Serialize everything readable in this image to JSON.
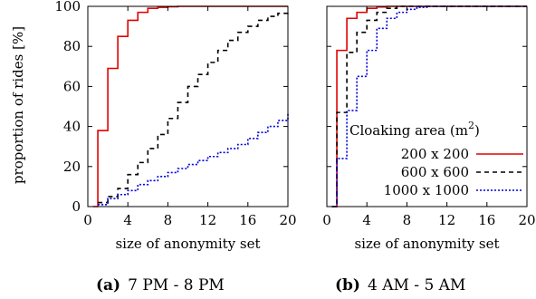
{
  "ylabel": "proportion of rides [%]",
  "legend_title_text": "Cloaking area (m",
  "legend_title_sup": "2",
  "legend_title_close": ")",
  "chart_data": [
    {
      "type": "line",
      "step": true,
      "caption_letter": "(a)",
      "caption_text": "7 PM - 8 PM",
      "xlabel": "size of anonymity set",
      "ylabel": "proportion of rides [%]",
      "xlim": [
        0,
        20
      ],
      "ylim": [
        0,
        100
      ],
      "xticks": [
        0,
        4,
        8,
        12,
        16,
        20
      ],
      "yticks": [
        0,
        20,
        40,
        60,
        80,
        100
      ],
      "grid": false,
      "series": [
        {
          "name": "200 x 200",
          "color": "#e00000",
          "dash": "",
          "x": [
            0.5,
            1,
            2,
            3,
            4,
            5,
            6,
            7,
            8,
            9,
            10
          ],
          "y": [
            0,
            38,
            69,
            85,
            93,
            97,
            99,
            99.5,
            99.8,
            100,
            100
          ]
        },
        {
          "name": "600 x 600",
          "color": "#000000",
          "dash": "5,4",
          "x": [
            1,
            2,
            3,
            4,
            5,
            6,
            7,
            8,
            9,
            10,
            11,
            12,
            13,
            14,
            15,
            16,
            17,
            18,
            19,
            20
          ],
          "y": [
            2,
            5,
            9,
            16,
            22,
            29,
            36,
            44,
            52,
            60,
            66,
            72,
            78,
            83,
            87,
            90,
            93,
            95,
            96.5,
            98
          ]
        },
        {
          "name": "1000 x 1000",
          "color": "#0000dd",
          "dash": "2,2",
          "x": [
            1,
            2,
            3,
            4,
            5,
            6,
            7,
            8,
            9,
            10,
            11,
            12,
            13,
            14,
            15,
            16,
            17,
            18,
            19,
            20
          ],
          "y": [
            1,
            4,
            6,
            8,
            11,
            13,
            15,
            17,
            19,
            21,
            23,
            25,
            27,
            29,
            31,
            34,
            37,
            40,
            43,
            47
          ]
        }
      ]
    },
    {
      "type": "line",
      "step": true,
      "caption_letter": "(b)",
      "caption_text": "4 AM - 5 AM",
      "xlabel": "size of anonymity set",
      "xlim": [
        0,
        20
      ],
      "ylim": [
        0,
        100
      ],
      "xticks": [
        0,
        4,
        8,
        12,
        16,
        20
      ],
      "yticks": [
        0,
        20,
        40,
        60,
        80,
        100
      ],
      "grid": false,
      "legend": "right",
      "series": [
        {
          "name": "200 x 200",
          "color": "#e00000",
          "dash": "",
          "x": [
            0.5,
            1,
            2,
            3,
            4,
            5,
            6
          ],
          "y": [
            0,
            78,
            94,
            97,
            99,
            99.7,
            100
          ]
        },
        {
          "name": "600 x 600",
          "color": "#000000",
          "dash": "5,4",
          "x": [
            0.5,
            1,
            2,
            3,
            4,
            5,
            6,
            7
          ],
          "y": [
            0,
            47,
            77,
            87,
            93,
            97,
            99,
            100
          ]
        },
        {
          "name": "1000 x 1000",
          "color": "#0000dd",
          "dash": "2,2",
          "x": [
            0.5,
            1,
            2,
            3,
            4,
            5,
            6,
            7,
            8,
            9,
            10
          ],
          "y": [
            0,
            24,
            48,
            65,
            78,
            89,
            94,
            97,
            98.5,
            99.5,
            100
          ]
        }
      ]
    }
  ]
}
